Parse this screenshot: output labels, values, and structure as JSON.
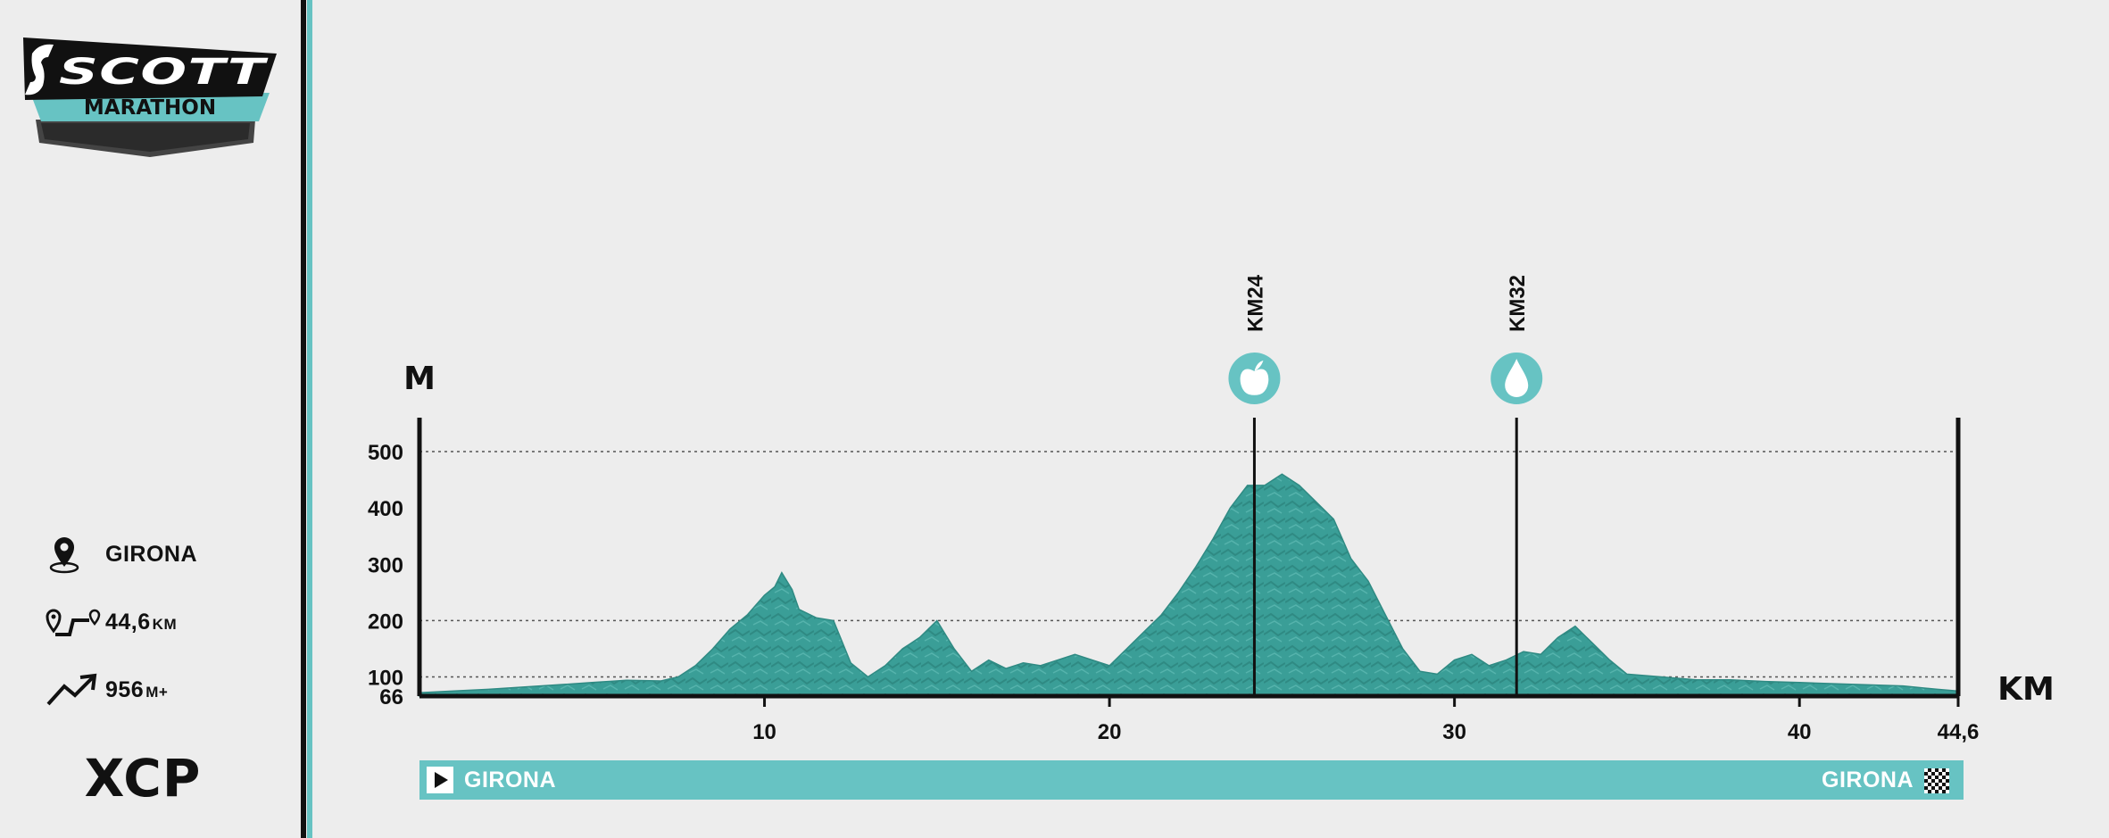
{
  "logo": {
    "brand": "SCOTT",
    "event": "MARATHON"
  },
  "info": {
    "location": "GIRONA",
    "distance_value": "44,6",
    "distance_unit": "KM",
    "elevation_value": "956",
    "elevation_unit": "M+",
    "category": "XCP"
  },
  "colors": {
    "teal": "#67c3c3",
    "profile": "#3a9e97",
    "dark": "#111111",
    "background": "#ededed"
  },
  "route": {
    "start": "GIRONA",
    "finish": "GIRONA"
  },
  "chart_data": {
    "type": "area",
    "title": "",
    "xlabel": "KM",
    "ylabel": "M",
    "xlim": [
      0,
      44.6
    ],
    "ylim": [
      66,
      550
    ],
    "x_ticks": [
      "10",
      "20",
      "30",
      "40",
      "44,6"
    ],
    "y_ticks": [
      "500",
      "400",
      "300",
      "200",
      "100",
      "66"
    ],
    "gridlines_y": [
      500,
      200,
      100
    ],
    "checkpoints": [
      {
        "label": "KM24",
        "km": 24.2,
        "icon": "apple-icon",
        "type": "food"
      },
      {
        "label": "KM32",
        "km": 31.8,
        "icon": "water-drop-icon",
        "type": "water"
      }
    ],
    "series": [
      {
        "x": [
          0,
          1,
          2,
          3,
          4,
          5,
          6,
          7,
          7.5,
          8,
          8.5,
          9,
          9.5,
          10,
          10.3,
          10.5,
          10.8,
          11,
          11.5,
          12,
          12.5,
          13,
          13.5,
          14,
          14.5,
          15,
          15.5,
          16,
          16.5,
          17,
          17.5,
          18,
          18.5,
          19,
          19.5,
          20,
          20.5,
          21,
          21.5,
          22,
          22.5,
          23,
          23.5,
          24,
          24.5,
          25,
          25.5,
          26,
          26.5,
          27,
          27.5,
          28,
          28.5,
          29,
          29.5,
          30,
          30.5,
          31,
          31.5,
          32,
          32.5,
          33,
          33.5,
          34,
          34.5,
          35,
          36,
          37,
          38,
          39,
          40,
          41,
          42,
          43,
          44,
          44.6
        ],
        "y": [
          72,
          75,
          78,
          82,
          86,
          90,
          94,
          93,
          100,
          120,
          150,
          185,
          210,
          245,
          260,
          285,
          255,
          220,
          205,
          200,
          125,
          100,
          120,
          150,
          170,
          200,
          150,
          110,
          130,
          115,
          125,
          120,
          130,
          140,
          130,
          120,
          150,
          180,
          210,
          250,
          295,
          345,
          400,
          440,
          440,
          460,
          440,
          410,
          380,
          310,
          270,
          210,
          150,
          110,
          105,
          130,
          140,
          120,
          130,
          145,
          140,
          170,
          190,
          160,
          130,
          105,
          100,
          95,
          95,
          92,
          90,
          88,
          86,
          84,
          78,
          75
        ]
      }
    ]
  }
}
